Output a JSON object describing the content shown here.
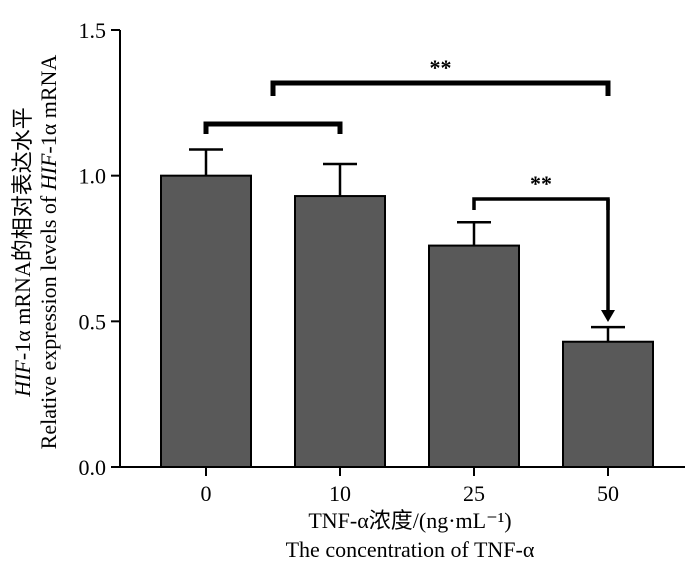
{
  "chart_data": {
    "type": "bar",
    "categories": [
      "0",
      "10",
      "25",
      "50"
    ],
    "values": [
      1.0,
      0.93,
      0.76,
      0.43
    ],
    "errors": [
      0.09,
      0.11,
      0.08,
      0.05
    ],
    "ylim": [
      0,
      1.5
    ],
    "yticks": [
      0.0,
      0.5,
      1.0,
      1.5
    ],
    "ytick_labels": [
      "0.0",
      "0.5",
      "1.0",
      "1.5"
    ],
    "bar_color": "#595959",
    "xlabel_line1": "TNF-α浓度/(ng·mL⁻¹)",
    "xlabel_line2": "The concentration of TNF-α",
    "ylabel_line1_italic": "HIF",
    "ylabel_line1_rest": "-1α mRNA的相对表达水平",
    "ylabel_line2_pre": "Relative expression levels of ",
    "ylabel_line2_italic": "HIF",
    "ylabel_line2_post": "-1α mRNA",
    "annotations": [
      {
        "from": 0,
        "to": 1,
        "label": ""
      },
      {
        "from": 0.5,
        "to": 3,
        "label": "**"
      },
      {
        "from": 2,
        "to": 3,
        "label": "**"
      }
    ]
  }
}
